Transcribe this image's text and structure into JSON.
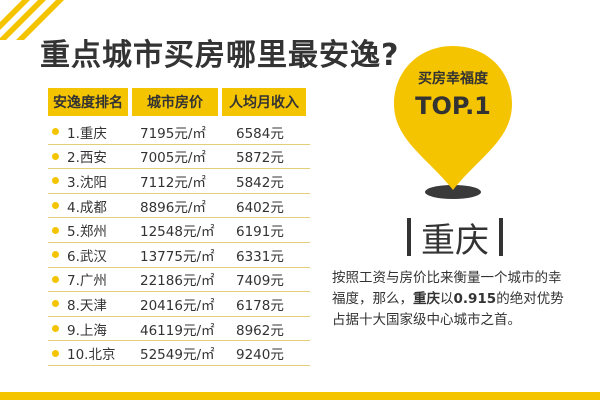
{
  "title": "重点城市买房哪里最安逸?",
  "table": {
    "headers": [
      "安逸度排名",
      "城市房价",
      "人均月收入"
    ],
    "rows": [
      {
        "rank": "1.重庆",
        "price": "7195元/㎡",
        "income": "6584元"
      },
      {
        "rank": "2.西安",
        "price": "7005元/㎡",
        "income": "5872元"
      },
      {
        "rank": "3.沈阳",
        "price": "7112元/㎡",
        "income": "5842元"
      },
      {
        "rank": "4.成都",
        "price": "8896元/㎡",
        "income": "6402元"
      },
      {
        "rank": "5.郑州",
        "price": "12548元/㎡",
        "income": "6191元"
      },
      {
        "rank": "6.武汉",
        "price": "13775元/㎡",
        "income": "6331元"
      },
      {
        "rank": "7.广州",
        "price": "22186元/㎡",
        "income": "7409元"
      },
      {
        "rank": "8.天津",
        "price": "20416元/㎡",
        "income": "6178元"
      },
      {
        "rank": "9.上海",
        "price": "46119元/㎡",
        "income": "8962元"
      },
      {
        "rank": "10.北京",
        "price": "52549元/㎡",
        "income": "9240元"
      }
    ]
  },
  "pin": {
    "label": "买房幸福度",
    "rank": "TOP.1"
  },
  "city": "重庆",
  "description": {
    "part1": "按照工资与房价比来衡量一个城市的幸福度，那么，",
    "city": "重庆",
    "part2": "以",
    "value": "0.915",
    "part3": "的绝对优势占据十大国家级中心城市之首。"
  },
  "colors": {
    "accent": "#f5c400",
    "text": "#333333"
  }
}
